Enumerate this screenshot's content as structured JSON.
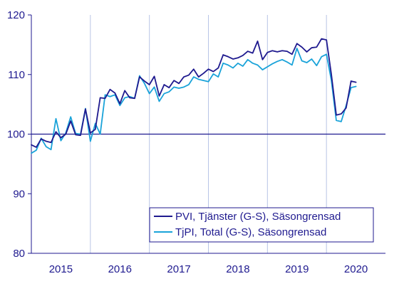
{
  "chart_data": {
    "type": "line",
    "title": "",
    "xlabel": "",
    "ylabel": "",
    "ylim": [
      80,
      120
    ],
    "yticks": [
      "80",
      "90",
      "100",
      "110",
      "120"
    ],
    "xticks": [
      "2015",
      "2016",
      "2017",
      "2018",
      "2019",
      "2020"
    ],
    "reference_line": 100,
    "grid": "vertical year separators",
    "legend_position": "bottom-right",
    "x_start": "2015-01",
    "x_end": "2020-09",
    "series": [
      {
        "name": "PVI, Tjänster (G-S), Säsongrensad",
        "color": "#1f1a8f",
        "values": [
          98.2,
          97.8,
          99.2,
          98.8,
          98.6,
          100.4,
          99.4,
          100.0,
          102.2,
          99.9,
          99.8,
          104.2,
          100.2,
          100.8,
          106.1,
          106.0,
          107.5,
          106.9,
          105.1,
          107.3,
          106.1,
          106.0,
          109.6,
          108.9,
          108.3,
          109.7,
          106.4,
          108.3,
          107.8,
          109.0,
          108.5,
          109.6,
          109.9,
          110.9,
          109.6,
          110.2,
          110.9,
          110.5,
          111.1,
          113.3,
          113.0,
          112.6,
          112.8,
          113.2,
          113.9,
          113.6,
          115.6,
          112.5,
          113.7,
          114.0,
          113.8,
          114.0,
          113.9,
          113.4,
          115.2,
          114.6,
          113.8,
          114.5,
          114.6,
          116.0,
          115.8,
          110.0,
          103.2,
          103.4,
          104.4,
          108.9,
          108.7
        ]
      },
      {
        "name": "TjPI, Total (G-S), Säsongrensad",
        "color": "#1aa3d9",
        "values": [
          96.8,
          97.3,
          99.3,
          97.9,
          97.4,
          102.6,
          98.9,
          100.2,
          102.9,
          100.1,
          100.0,
          104.3,
          98.8,
          101.8,
          100.0,
          106.6,
          106.3,
          106.6,
          104.8,
          106.1,
          106.3,
          106.0,
          109.8,
          108.5,
          106.8,
          107.9,
          105.5,
          106.8,
          107.1,
          107.9,
          107.7,
          107.9,
          108.3,
          109.6,
          109.2,
          109.0,
          108.8,
          110.1,
          109.6,
          111.9,
          111.6,
          111.1,
          111.9,
          111.4,
          112.5,
          111.9,
          111.6,
          110.8,
          111.3,
          111.8,
          112.2,
          112.5,
          112.1,
          111.6,
          114.4,
          112.3,
          112.0,
          112.6,
          111.5,
          113.0,
          113.4,
          109.0,
          102.3,
          102.1,
          104.8,
          107.8,
          108.0
        ]
      }
    ]
  }
}
